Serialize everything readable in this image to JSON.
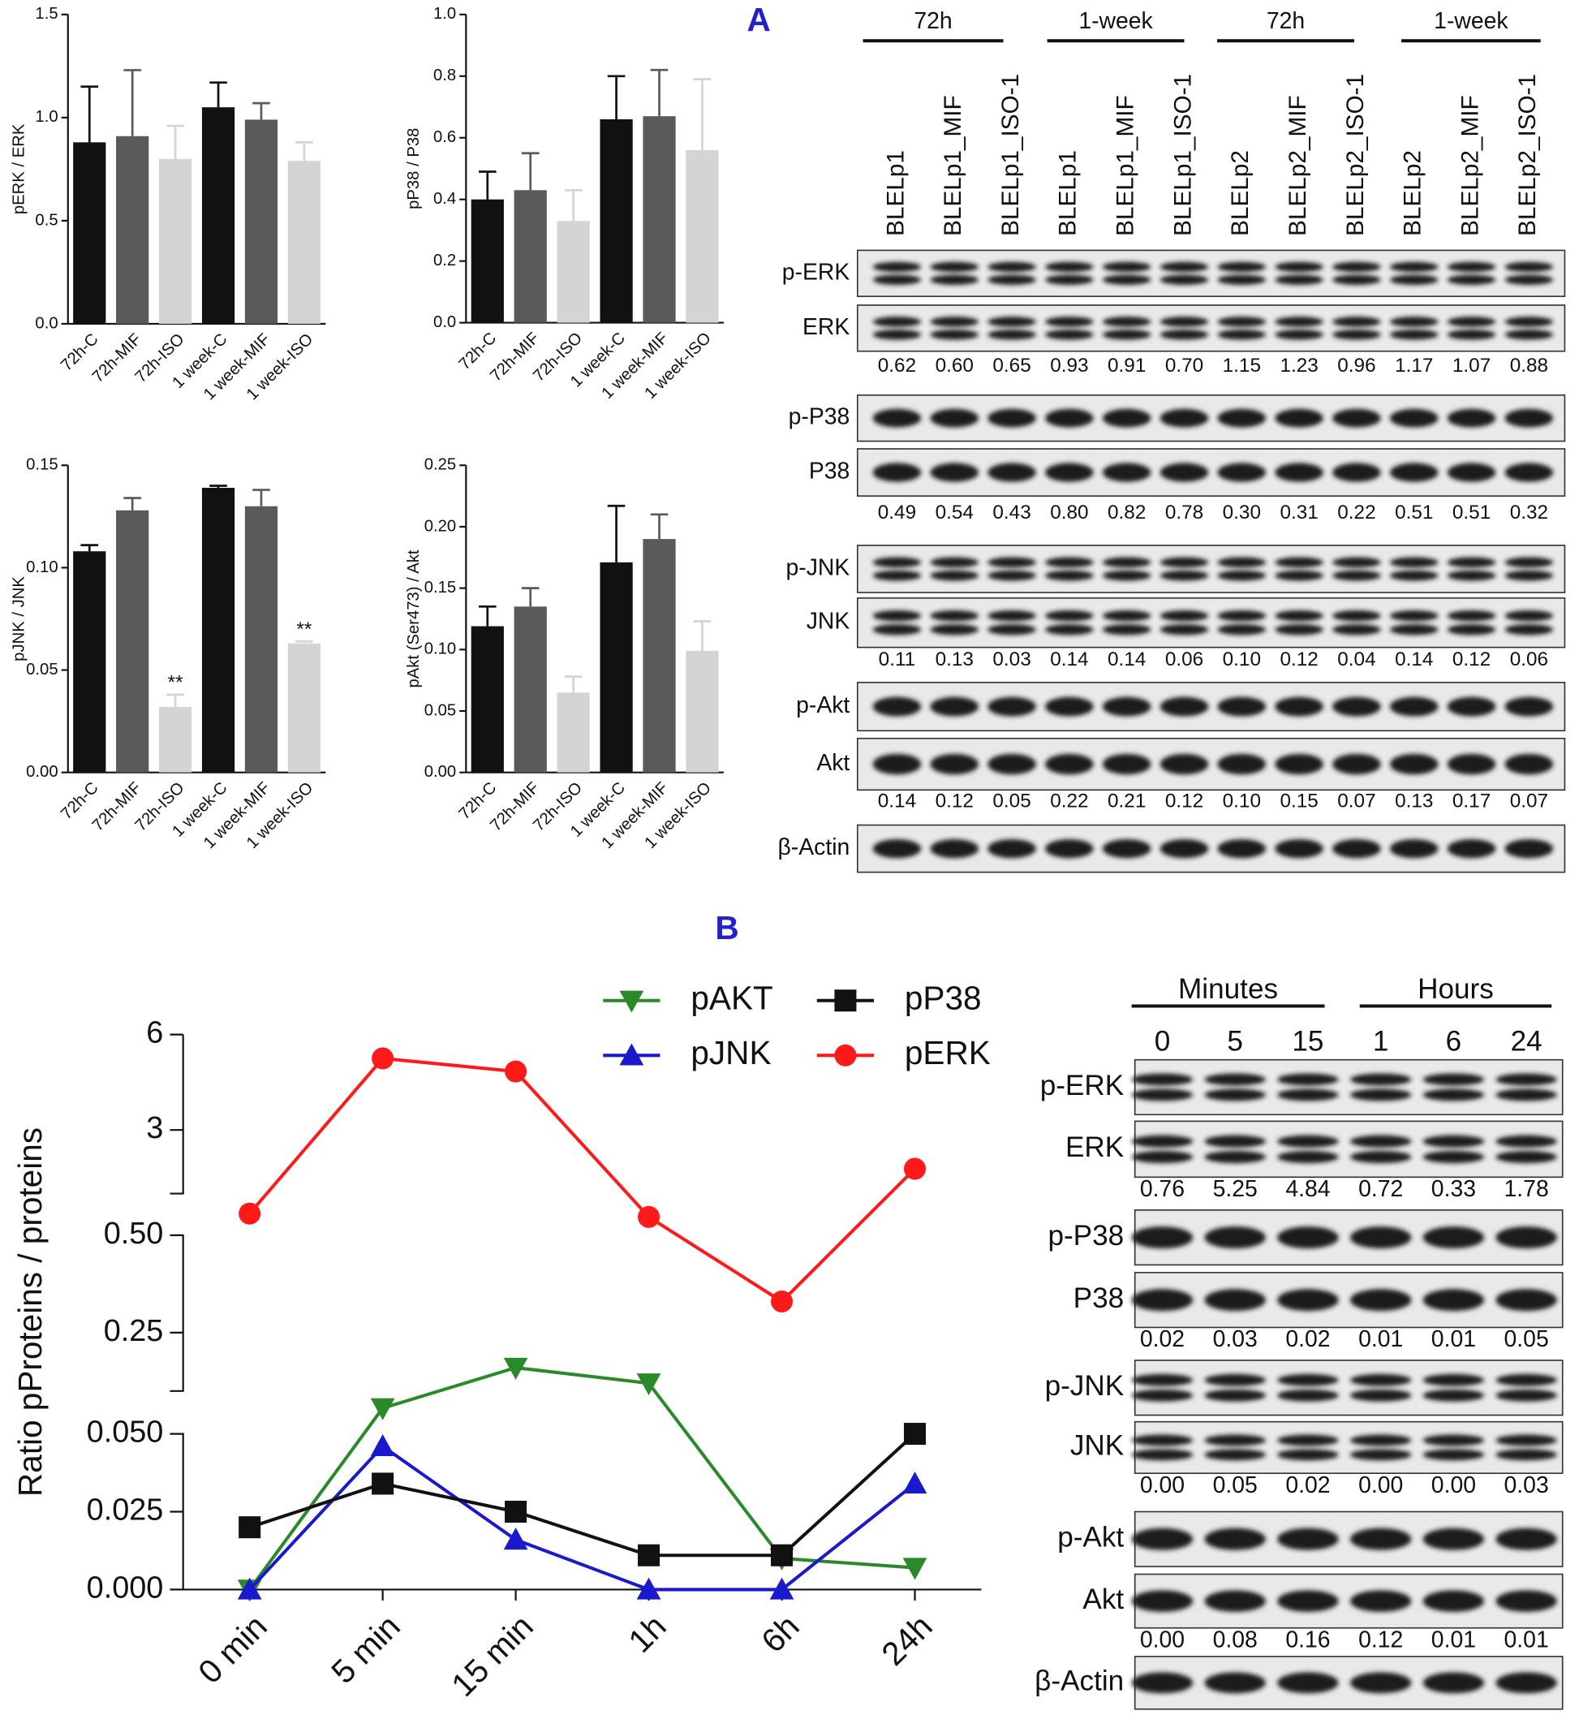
{
  "panel_labels": [
    "A",
    "B"
  ],
  "chart_data": [
    {
      "type": "bar",
      "ylabel": "pERK / ERK",
      "categories": [
        "72h-C",
        "72h-MIF",
        "72h-ISO",
        "1 week-C",
        "1 week-MIF",
        "1 week-ISO"
      ],
      "values": [
        0.88,
        0.91,
        0.8,
        1.05,
        0.99,
        0.79
      ],
      "errors": [
        0.27,
        0.32,
        0.16,
        0.12,
        0.08,
        0.09
      ],
      "colors": [
        "#111111",
        "#5a5a5a",
        "#d4d4d4",
        "#111111",
        "#5a5a5a",
        "#d4d4d4"
      ],
      "ylim": [
        0,
        1.5
      ],
      "yticks": [
        {
          "value": 0,
          "label": "0.0"
        },
        0.5,
        {
          "value": 1,
          "label": "1.0"
        },
        1.5
      ]
    },
    {
      "type": "bar",
      "ylabel": "pP38 / P38",
      "categories": [
        "72h-C",
        "72h-MIF",
        "72h-ISO",
        "1 week-C",
        "1 week-MIF",
        "1 week-ISO"
      ],
      "values": [
        0.4,
        0.43,
        0.33,
        0.66,
        0.67,
        0.56
      ],
      "errors": [
        0.09,
        0.12,
        0.1,
        0.14,
        0.15,
        0.23
      ],
      "colors": [
        "#111111",
        "#5a5a5a",
        "#d4d4d4",
        "#111111",
        "#5a5a5a",
        "#d4d4d4"
      ],
      "ylim": [
        0,
        1
      ],
      "yticks": [
        {
          "value": 0,
          "label": "0.0"
        },
        0.2,
        0.4,
        0.6,
        0.8,
        {
          "value": 1,
          "label": "1.0"
        }
      ]
    },
    {
      "type": "bar",
      "ylabel": "pJNK / JNK",
      "categories": [
        "72h-C",
        "72h-MIF",
        "72h-ISO",
        "1 week-C",
        "1 week-MIF",
        "1 week-ISO"
      ],
      "values": [
        0.108,
        0.128,
        0.032,
        0.139,
        0.13,
        0.063
      ],
      "errors": [
        0.003,
        0.006,
        0.006,
        0.001,
        0.008,
        0.001
      ],
      "colors": [
        "#111111",
        "#5a5a5a",
        "#d4d4d4",
        "#111111",
        "#5a5a5a",
        "#d4d4d4"
      ],
      "annotations": [
        null,
        null,
        "**",
        null,
        null,
        "**"
      ],
      "ylim": [
        0,
        0.15
      ],
      "yticks": [
        {
          "value": 0,
          "label": "0.00"
        },
        0.05,
        {
          "value": 0.1,
          "label": "0.10"
        },
        0.15
      ]
    },
    {
      "type": "bar",
      "ylabel": "pAkt (Ser473) / Akt",
      "categories": [
        "72h-C",
        "72h-MIF",
        "72h-ISO",
        "1 week-C",
        "1 week-MIF",
        "1 week-ISO"
      ],
      "values": [
        0.119,
        0.135,
        0.065,
        0.171,
        0.19,
        0.099
      ],
      "errors": [
        0.016,
        0.015,
        0.013,
        0.046,
        0.02,
        0.024
      ],
      "colors": [
        "#111111",
        "#5a5a5a",
        "#d4d4d4",
        "#111111",
        "#5a5a5a",
        "#d4d4d4"
      ],
      "ylim": [
        0,
        0.25
      ],
      "yticks": [
        {
          "value": 0,
          "label": "0.00"
        },
        0.05,
        {
          "value": 0.1,
          "label": "0.10"
        },
        0.15,
        {
          "value": 0.2,
          "label": "0.20"
        },
        0.25
      ]
    },
    {
      "type": "line",
      "ylabel": "Ratio pProteins / proteins",
      "categories": [
        "0 min",
        "5 min",
        "15 min",
        "1h",
        "6h",
        "24h"
      ],
      "y_segments": [
        {
          "ylim": [
            0,
            0.05
          ],
          "yticks": [
            {
              "value": 0,
              "label": "0.000"
            },
            0.025,
            {
              "value": 0.05,
              "label": "0.050"
            }
          ]
        },
        {
          "ylim": [
            0.1,
            0.5
          ],
          "yticks": [
            0.25,
            {
              "value": 0.5,
              "label": "0.50"
            }
          ]
        },
        {
          "ylim": [
            1,
            6
          ],
          "yticks": [
            3,
            6
          ]
        }
      ],
      "series": [
        {
          "name": "pAKT",
          "color": "#2a8a2a",
          "marker": "triangle-down",
          "values": [
            0.0,
            0.08,
            0.16,
            0.12,
            0.01,
            0.007
          ]
        },
        {
          "name": "pJNK",
          "color": "#1a1acc",
          "marker": "triangle-up",
          "values": [
            0.0,
            0.046,
            0.016,
            0.0,
            0.0,
            0.034
          ]
        },
        {
          "name": "pP38",
          "color": "#111111",
          "marker": "square",
          "values": [
            0.02,
            0.034,
            0.025,
            0.011,
            0.011,
            0.05
          ]
        },
        {
          "name": "pERK",
          "color": "#ff1a1a",
          "marker": "circle",
          "values": [
            0.76,
            5.25,
            4.84,
            0.72,
            0.33,
            1.78
          ]
        }
      ]
    }
  ],
  "blots": [
    {
      "groups": [
        "72h",
        "1-week",
        "72h",
        "1-week"
      ],
      "lanes": [
        "BLELp1",
        "BLELp1_MIF",
        "BLELp1_ISO-1",
        "BLELp1",
        "BLELp1_MIF",
        "BLELp1_ISO-1",
        "BLELp2",
        "BLELp2_MIF",
        "BLELp2_ISO-1",
        "BLELp2",
        "BLELp2_MIF",
        "BLELp2_ISO-1"
      ],
      "rows": [
        "p-ERK",
        "ERK",
        "p-P38",
        "P38",
        "p-JNK",
        "JNK",
        "p-Akt",
        "Akt",
        "β-Actin"
      ],
      "ratios": [
        [
          "0.62",
          "0.60",
          "0.65",
          "0.93",
          "0.91",
          "0.70",
          "1.15",
          "1.23",
          "0.96",
          "1.17",
          "1.07",
          "0.88"
        ],
        [
          "0.49",
          "0.54",
          "0.43",
          "0.80",
          "0.82",
          "0.78",
          "0.30",
          "0.31",
          "0.22",
          "0.51",
          "0.51",
          "0.32"
        ],
        [
          "0.11",
          "0.13",
          "0.03",
          "0.14",
          "0.14",
          "0.06",
          "0.10",
          "0.12",
          "0.04",
          "0.14",
          "0.12",
          "0.06"
        ],
        [
          "0.14",
          "0.12",
          "0.05",
          "0.22",
          "0.21",
          "0.12",
          "0.10",
          "0.15",
          "0.07",
          "0.13",
          "0.17",
          "0.07"
        ]
      ]
    },
    {
      "groups": [
        "Minutes",
        "Hours"
      ],
      "lanes": [
        "0",
        "5",
        "15",
        "1",
        "6",
        "24"
      ],
      "rows": [
        "p-ERK",
        "ERK",
        "p-P38",
        "P38",
        "p-JNK",
        "JNK",
        "p-Akt",
        "Akt",
        "β-Actin"
      ],
      "ratios": [
        [
          "0.76",
          "5.25",
          "4.84",
          "0.72",
          "0.33",
          "1.78"
        ],
        [
          "0.02",
          "0.03",
          "0.02",
          "0.01",
          "0.01",
          "0.05"
        ],
        [
          "0.00",
          "0.05",
          "0.02",
          "0.00",
          "0.00",
          "0.03"
        ],
        [
          "0.00",
          "0.08",
          "0.16",
          "0.12",
          "0.01",
          "0.01"
        ]
      ]
    }
  ]
}
